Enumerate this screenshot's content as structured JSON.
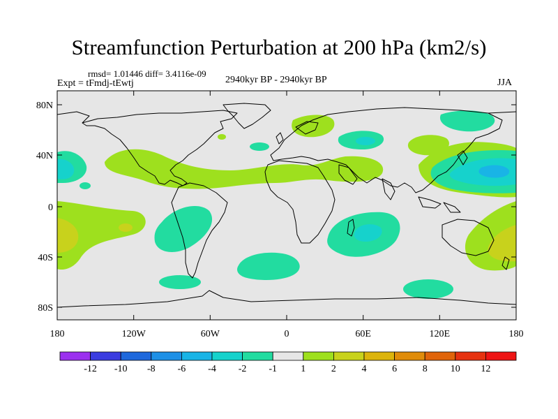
{
  "title": "Streamfunction Perturbation at 200 hPa (km2/s)",
  "stats_line": "rmsd= 1.01446 diff= 3.4116e-09",
  "experiment": "Expt = tFmdj-tEwtj",
  "period": "2940kyr BP - 2940kyr BP",
  "season": "JJA",
  "lat_labels": [
    "80N",
    "40N",
    "0",
    "40S",
    "80S"
  ],
  "lon_labels": [
    "180",
    "120W",
    "60W",
    "0",
    "60E",
    "120E",
    "180"
  ],
  "colorbar": {
    "labels": [
      "-12",
      "-10",
      "-8",
      "-6",
      "-4",
      "-2",
      "-1",
      "1",
      "2",
      "4",
      "6",
      "8",
      "10",
      "12"
    ],
    "colors": [
      "#9b30ef",
      "#3b3ce0",
      "#1e68dc",
      "#1e90e6",
      "#19b4e6",
      "#16d2cc",
      "#22dca0",
      "#e6e6e6",
      "#9ee01e",
      "#c8d21c",
      "#dcb40c",
      "#e08c0a",
      "#e0640a",
      "#e63210",
      "#ee1414"
    ]
  },
  "colors": {
    "background_field": "#e6e6e6",
    "coast": "#000000"
  },
  "anomaly_regions": [
    {
      "name": "n-atlantic-band",
      "level": "2"
    },
    {
      "name": "n-pacific-east",
      "level": "-2"
    },
    {
      "name": "nw-pacific",
      "level": "-4"
    },
    {
      "name": "s-pacific",
      "level": "4"
    },
    {
      "name": "w-pacific-south",
      "level": "4"
    },
    {
      "name": "s-indian-ocean",
      "level": "-4"
    },
    {
      "name": "se-pacific",
      "level": "-2"
    },
    {
      "name": "s-atlantic",
      "level": "-2"
    },
    {
      "name": "arctic-europe",
      "level": "2"
    },
    {
      "name": "asia-band",
      "level": "2"
    }
  ]
}
